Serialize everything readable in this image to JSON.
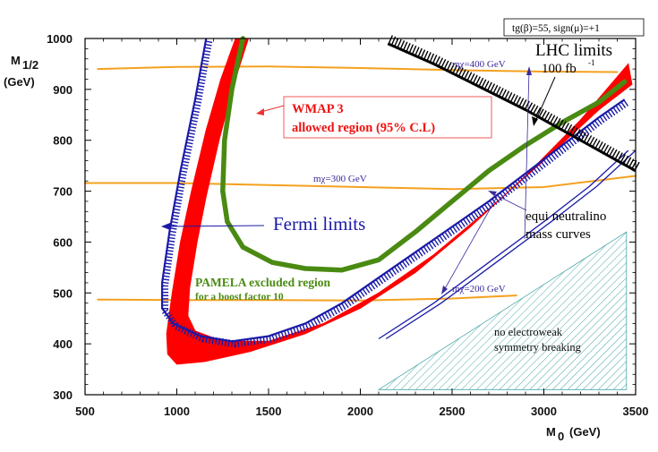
{
  "chart_data": {
    "type": "line",
    "ylabel_main": "M",
    "ylabel_sub": "1/2",
    "ylabel_unit": "(GeV)",
    "xlabel_main": "M",
    "xlabel_sub": "0",
    "xlabel_unit": "(GeV)",
    "xlim": [
      500,
      3500
    ],
    "ylim": [
      300,
      1000
    ],
    "x_ticks": [
      500,
      1000,
      1500,
      2000,
      2500,
      3000,
      3500
    ],
    "y_ticks": [
      300,
      400,
      500,
      600,
      700,
      800,
      900,
      1000
    ],
    "corner_box": "tg(β)=55, sign(μ)=+1",
    "series": [
      {
        "name": "WMAP 3 allowed region (95% C.L)",
        "color": "#ff0000",
        "kind": "band",
        "upper": [
          [
            1320,
            1000
          ],
          [
            1240,
            920
          ],
          [
            1160,
            820
          ],
          [
            1080,
            700
          ],
          [
            1020,
            600
          ],
          [
            975,
            500
          ],
          [
            945,
            420
          ],
          [
            950,
            380
          ],
          [
            1000,
            360
          ],
          [
            1150,
            365
          ],
          [
            1400,
            385
          ],
          [
            1700,
            420
          ],
          [
            2000,
            470
          ],
          [
            2300,
            540
          ],
          [
            2600,
            630
          ],
          [
            2900,
            730
          ],
          [
            3200,
            840
          ],
          [
            3460,
            950
          ]
        ],
        "lower": [
          [
            1390,
            1000
          ],
          [
            1310,
            910
          ],
          [
            1230,
            800
          ],
          [
            1160,
            690
          ],
          [
            1110,
            600
          ],
          [
            1070,
            510
          ],
          [
            1060,
            455
          ],
          [
            1100,
            425
          ],
          [
            1250,
            405
          ],
          [
            1500,
            405
          ],
          [
            1800,
            440
          ],
          [
            2100,
            500
          ],
          [
            2400,
            575
          ],
          [
            2700,
            665
          ],
          [
            3000,
            760
          ],
          [
            3300,
            860
          ],
          [
            3480,
            910
          ]
        ]
      },
      {
        "name": "PAMELA excluded region for a boost factor 10",
        "color": "#4a8a12",
        "kind": "line",
        "points": [
          [
            1360,
            1000
          ],
          [
            1300,
            900
          ],
          [
            1260,
            800
          ],
          [
            1250,
            700
          ],
          [
            1275,
            640
          ],
          [
            1360,
            590
          ],
          [
            1520,
            560
          ],
          [
            1700,
            548
          ],
          [
            1900,
            545
          ],
          [
            2100,
            565
          ],
          [
            2300,
            620
          ],
          [
            2500,
            680
          ],
          [
            2700,
            740
          ],
          [
            2900,
            790
          ],
          [
            3100,
            835
          ],
          [
            3300,
            875
          ],
          [
            3440,
            915
          ]
        ]
      },
      {
        "name": "Fermi limits",
        "color": "#1a1aa8",
        "kind": "hatched",
        "points": [
          [
            1160,
            1000
          ],
          [
            1100,
            880
          ],
          [
            1020,
            740
          ],
          [
            960,
            620
          ],
          [
            920,
            520
          ],
          [
            920,
            470
          ],
          [
            980,
            440
          ],
          [
            1130,
            415
          ],
          [
            1300,
            405
          ],
          [
            1500,
            415
          ],
          [
            1700,
            440
          ],
          [
            1900,
            480
          ],
          [
            2100,
            530
          ],
          [
            2300,
            580
          ],
          [
            2500,
            630
          ],
          [
            2700,
            680
          ],
          [
            2900,
            735
          ],
          [
            3100,
            790
          ],
          [
            3300,
            845
          ],
          [
            3440,
            880
          ]
        ]
      },
      {
        "name": "LHC limits 100 fb-1",
        "color": "#000000",
        "kind": "hatched",
        "points": [
          [
            2150,
            990
          ],
          [
            2400,
            950
          ],
          [
            2650,
            905
          ],
          [
            2900,
            860
          ],
          [
            3150,
            810
          ],
          [
            3350,
            770
          ],
          [
            3500,
            740
          ]
        ]
      },
      {
        "name": "mχ=400 GeV",
        "color": "#f5a01e",
        "kind": "line",
        "points": [
          [
            570,
            940
          ],
          [
            1000,
            944
          ],
          [
            1500,
            945
          ],
          [
            2000,
            942
          ],
          [
            2500,
            938
          ],
          [
            3000,
            935
          ],
          [
            3400,
            934
          ]
        ]
      },
      {
        "name": "mχ=300 GeV",
        "color": "#f5a01e",
        "kind": "line",
        "points": [
          [
            500,
            716
          ],
          [
            1000,
            716
          ],
          [
            1500,
            712
          ],
          [
            2000,
            708
          ],
          [
            2500,
            704
          ],
          [
            3000,
            708
          ],
          [
            3500,
            730
          ]
        ]
      },
      {
        "name": "mχ=200 GeV",
        "color": "#f5a01e",
        "kind": "line",
        "points": [
          [
            570,
            487
          ],
          [
            1000,
            486
          ],
          [
            1500,
            486
          ],
          [
            2000,
            485
          ],
          [
            2500,
            489
          ],
          [
            2850,
            495
          ]
        ]
      },
      {
        "name": "equi neutralino mass curves",
        "color": "#1a1aa8",
        "kind": "double-line",
        "points": [
          [
            2100,
            410
          ],
          [
            2400,
            480
          ],
          [
            2700,
            560
          ],
          [
            3000,
            640
          ],
          [
            3250,
            710
          ],
          [
            3460,
            780
          ]
        ]
      }
    ],
    "annotations": {
      "wmap_line1": "WMAP 3",
      "wmap_line2": "allowed region (95% C.L)",
      "lhc_title": "LHC limits",
      "lhc_lumi": "100 fb",
      "lhc_lumi_sup": "-1",
      "fermi": "Fermi  limits",
      "pamela_line1": "PAMELA excluded region",
      "pamela_line2": "for a boost factor 10",
      "equi_line1": "equi neutralino",
      "equi_line2": "mass curves",
      "m400": "mχ=400 GeV",
      "m300": "mχ=300 GeV",
      "m200": "mχ=200 GeV",
      "ewsb_line1": "no electroweak",
      "ewsb_line2": "symmetry breaking"
    },
    "no_ewsb_region": [
      [
        2100,
        310
      ],
      [
        3450,
        310
      ],
      [
        3450,
        620
      ]
    ],
    "grid": false,
    "legend": "none"
  }
}
